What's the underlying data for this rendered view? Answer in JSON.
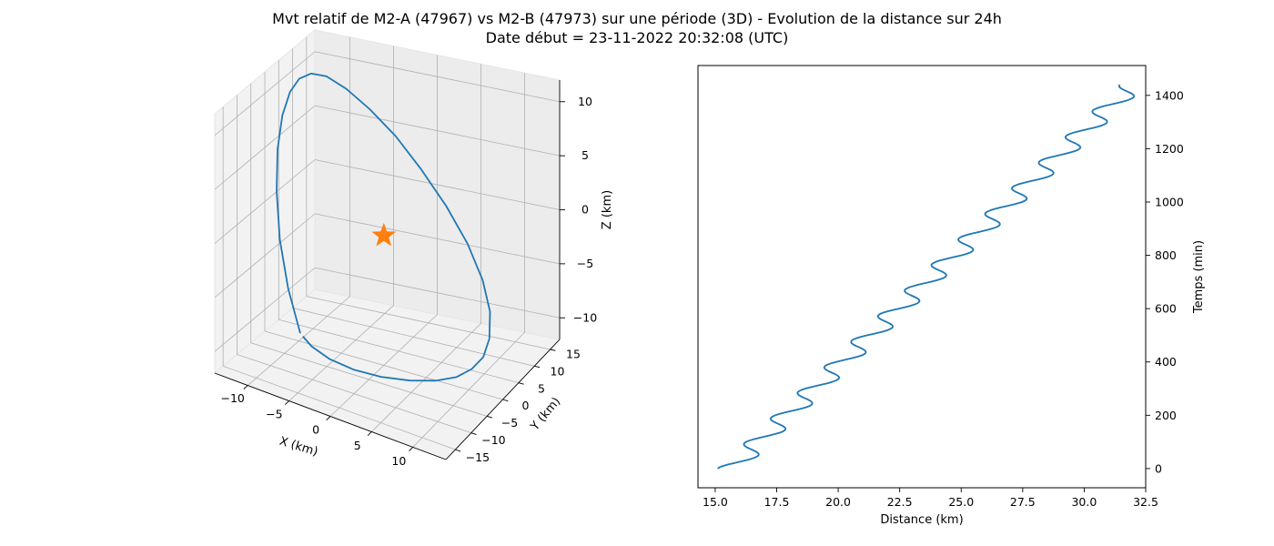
{
  "figure": {
    "title_line1": "Mvt relatif de M2-A (47967) vs M2-B (47973) sur une période (3D) - Evolution de la distance sur 24h",
    "title_line2": "Date début = 23-11-2022 20:32:08 (UTC)"
  },
  "colors": {
    "series": "#1f77b4",
    "marker": "#ff7f0e",
    "pane": "#f2f2f2",
    "grid": "#b0b0b0"
  },
  "chart_data": [
    {
      "type": "line",
      "projection": "3d",
      "xlabel": "X (km)",
      "ylabel": "Y (km)",
      "zlabel": "Z (km)",
      "xlim": [
        -14,
        14
      ],
      "ylim": [
        -18,
        18
      ],
      "zlim": [
        -12,
        12
      ],
      "x_ticks": [
        -10,
        -5,
        0,
        5,
        10
      ],
      "y_ticks": [
        -15,
        -10,
        -5,
        0,
        5,
        10,
        15
      ],
      "z_ticks": [
        -10,
        -5,
        0,
        5,
        10
      ],
      "x_tick_labels": [
        "−10",
        "−5",
        "0",
        "5",
        "10"
      ],
      "y_tick_labels": [
        "−15",
        "−10",
        "−5",
        "0",
        "5",
        "10",
        "15"
      ],
      "z_tick_labels": [
        "−10",
        "−5",
        "0",
        "5",
        "10"
      ],
      "grid": true,
      "series": [
        {
          "role": "relative-trajectory",
          "x": [
            -4.8,
            -6.5,
            -8.2,
            -9.6,
            -10.6,
            -11.2,
            -11.5,
            -11.6,
            -11.3,
            -10.4,
            -8.7,
            -6.5,
            -3.8,
            -0.9,
            2.2,
            5.2,
            7.8,
            9.8,
            11.1,
            11.7,
            11.6,
            11.0,
            9.7,
            7.4,
            4.6,
            1.6,
            -1.2,
            -3.4,
            -4.6
          ],
          "y": [
            -14.7,
            -14.0,
            -12.0,
            -9.0,
            -5.7,
            -2.2,
            1.4,
            5.0,
            8.3,
            11.0,
            12.9,
            14.3,
            15.1,
            15.2,
            14.6,
            13.0,
            10.6,
            7.4,
            3.6,
            0.0,
            -3.4,
            -6.7,
            -9.6,
            -12.0,
            -13.8,
            -14.7,
            -15.0,
            -14.8,
            -14.4
          ],
          "z": [
            -6.5,
            -3.0,
            0.6,
            4.0,
            6.9,
            9.1,
            10.4,
            10.8,
            10.6,
            9.9,
            8.6,
            6.8,
            4.6,
            2.0,
            -0.7,
            -3.2,
            -5.4,
            -7.0,
            -8.1,
            -8.6,
            -8.7,
            -8.6,
            -8.4,
            -8.3,
            -8.2,
            -8.1,
            -7.8,
            -7.3,
            -6.8
          ]
        }
      ],
      "markers": [
        {
          "role": "reference-satellite",
          "symbol": "star",
          "x": 0,
          "y": 0,
          "z": 0
        }
      ]
    },
    {
      "type": "line",
      "xlabel": "Distance (km)",
      "ylabel": "Temps (min)",
      "y_axis_side": "right",
      "xlim": [
        14.3,
        32.5
      ],
      "ylim": [
        -72,
        1512
      ],
      "x_ticks": [
        15,
        17.5,
        20,
        22.5,
        25,
        27.5,
        30,
        32.5
      ],
      "x_tick_labels": [
        "15.0",
        "17.5",
        "20.0",
        "22.5",
        "25.0",
        "27.5",
        "30.0",
        "32.5"
      ],
      "y_ticks": [
        0,
        200,
        400,
        600,
        800,
        1000,
        1200,
        1400
      ],
      "y_tick_labels": [
        "0",
        "200",
        "400",
        "600",
        "800",
        "1000",
        "1200",
        "1400"
      ],
      "grid": false,
      "series": [
        {
          "role": "distance-vs-time",
          "t_start": 0,
          "t_end": 1440,
          "t_step": 5,
          "distance_at_start": 15.1,
          "distance_rate_km_per_min": 0.01135,
          "oscillation_amplitude_km": 0.55,
          "oscillation_period_min": 96
        }
      ]
    }
  ]
}
